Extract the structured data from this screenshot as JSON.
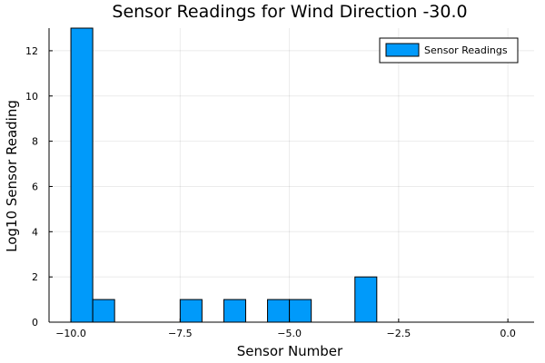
{
  "chart_data": {
    "type": "bar",
    "title": "Sensor Readings for Wind Direction -30.0",
    "xlabel": "Sensor Number",
    "ylabel": "Log10 Sensor Reading",
    "xlim": [
      -10.5,
      0.6
    ],
    "ylim": [
      0,
      13
    ],
    "x_ticks": [
      -10.0,
      -7.5,
      -5.0,
      -2.5,
      0.0
    ],
    "x_tick_labels": [
      "−10.0",
      "−7.5",
      "−5.0",
      "−2.5",
      "0.0"
    ],
    "y_ticks": [
      0,
      2,
      4,
      6,
      8,
      10,
      12
    ],
    "y_tick_labels": [
      "0",
      "2",
      "4",
      "6",
      "8",
      "10",
      "12"
    ],
    "grid": true,
    "legend_position": "top-right",
    "series": [
      {
        "name": "Sensor Readings",
        "color": "#009AFA",
        "bins": [
          {
            "x0": -10.0,
            "x1": -9.5,
            "value": 13
          },
          {
            "x0": -9.5,
            "x1": -9.0,
            "value": 1
          },
          {
            "x0": -7.5,
            "x1": -7.0,
            "value": 1
          },
          {
            "x0": -6.5,
            "x1": -6.0,
            "value": 1
          },
          {
            "x0": -5.5,
            "x1": -5.0,
            "value": 1
          },
          {
            "x0": -5.0,
            "x1": -4.5,
            "value": 1
          },
          {
            "x0": -3.5,
            "x1": -3.0,
            "value": 2
          }
        ]
      }
    ]
  }
}
